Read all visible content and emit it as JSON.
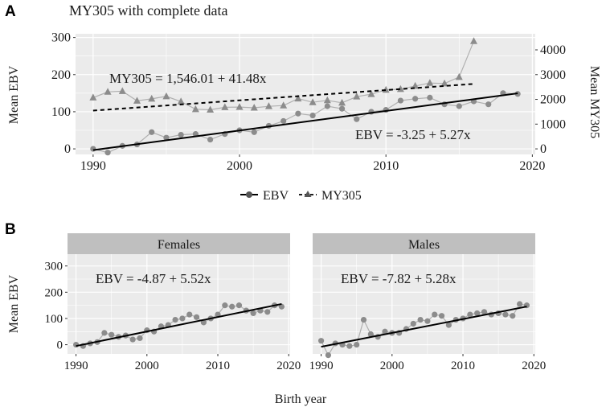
{
  "panel_a_label": "A",
  "panel_b_label": "B",
  "shared_xlabel": "Birth year",
  "legend": {
    "ebv_label": "EBV",
    "my305_label": "MY305"
  },
  "colors": {
    "panel_bg": "#ebebeb",
    "grid": "#dcdcdc",
    "series_points": "#8c8c8c",
    "series_line": "#b0b0b0",
    "regression": "#000000",
    "strip_bg": "#bfbfbf"
  },
  "chart_data": [
    {
      "id": "A",
      "type": "line",
      "title": "MY305 with complete data",
      "xlabel": "",
      "ylabel": "Mean EBV",
      "y2label": "Mean MY305",
      "xlim": [
        1988.8,
        2020.2
      ],
      "ylim": [
        -15,
        310
      ],
      "y2lim": [
        -225,
        4650
      ],
      "xticks": [
        1990,
        2000,
        2010,
        2020
      ],
      "yticks": [
        0,
        100,
        200,
        300
      ],
      "y2ticks": [
        0,
        1000,
        2000,
        3000,
        4000
      ],
      "series": [
        {
          "name": "EBV",
          "axis": "left",
          "marker": "circle",
          "x": [
            1990,
            1991,
            1992,
            1993,
            1994,
            1995,
            1996,
            1997,
            1998,
            1999,
            2000,
            2001,
            2002,
            2003,
            2004,
            2005,
            2006,
            2007,
            2008,
            2009,
            2010,
            2011,
            2012,
            2013,
            2014,
            2015,
            2016,
            2017,
            2018,
            2019
          ],
          "values": [
            0,
            -10,
            8,
            12,
            45,
            30,
            38,
            40,
            25,
            40,
            50,
            45,
            62,
            75,
            95,
            90,
            115,
            108,
            80,
            100,
            105,
            130,
            135,
            138,
            120,
            115,
            128,
            120,
            150,
            148
          ]
        },
        {
          "name": "MY305",
          "axis": "right",
          "marker": "triangle",
          "x": [
            1990,
            1991,
            1992,
            1993,
            1994,
            1995,
            1996,
            1997,
            1998,
            1999,
            2000,
            2001,
            2002,
            2003,
            2004,
            2005,
            2006,
            2007,
            2008,
            2009,
            2010,
            2011,
            2012,
            2013,
            2014,
            2015,
            2016
          ],
          "values": [
            2070,
            2300,
            2330,
            1940,
            2020,
            2120,
            1910,
            1600,
            1580,
            1680,
            1690,
            1660,
            1720,
            1750,
            2030,
            1880,
            1960,
            1860,
            2110,
            2210,
            2380,
            2410,
            2540,
            2660,
            2640,
            2900,
            4350
          ]
        }
      ],
      "regressions": [
        {
          "series": "EBV",
          "equation": "EBV = -3.25 + 5.27x",
          "intercept": -3.25,
          "slope": 5.27,
          "x0": 1990,
          "x_range": [
            1990,
            2019
          ],
          "axis": "left",
          "style": "solid"
        },
        {
          "series": "MY305",
          "equation": "MY305 = 1,546.01 + 41.48x",
          "intercept": 1546.01,
          "slope": 41.48,
          "x0": 1990,
          "x_range": [
            1990,
            2016
          ],
          "axis": "right",
          "style": "dashed"
        }
      ],
      "legend_position": "bottom"
    },
    {
      "id": "B-females",
      "type": "line",
      "strip_label": "Females",
      "ylabel": "Mean EBV",
      "xlim": [
        1988.8,
        2020.2
      ],
      "ylim": [
        -35,
        345
      ],
      "xticks": [
        1990,
        2000,
        2010,
        2020
      ],
      "yticks": [
        0,
        100,
        200,
        300
      ],
      "series": [
        {
          "name": "EBV",
          "marker": "circle",
          "x": [
            1990,
            1991,
            1992,
            1993,
            1994,
            1995,
            1996,
            1997,
            1998,
            1999,
            2000,
            2001,
            2002,
            2003,
            2004,
            2005,
            2006,
            2007,
            2008,
            2009,
            2010,
            2011,
            2012,
            2013,
            2014,
            2015,
            2016,
            2017,
            2018,
            2019
          ],
          "values": [
            0,
            -5,
            5,
            10,
            45,
            38,
            30,
            35,
            20,
            25,
            55,
            50,
            70,
            75,
            95,
            100,
            115,
            105,
            85,
            100,
            115,
            150,
            145,
            150,
            130,
            120,
            130,
            125,
            150,
            145
          ]
        }
      ],
      "regressions": [
        {
          "equation": "EBV = -4.87 + 5.52x",
          "intercept": -4.87,
          "slope": 5.52,
          "x0": 1990,
          "x_range": [
            1990,
            2019
          ],
          "style": "solid"
        }
      ]
    },
    {
      "id": "B-males",
      "type": "line",
      "strip_label": "Males",
      "xlim": [
        1988.8,
        2020.2
      ],
      "ylim": [
        -35,
        345
      ],
      "xticks": [
        1990,
        2000,
        2010,
        2020
      ],
      "yticks": [
        0,
        100,
        200,
        300
      ],
      "series": [
        {
          "name": "EBV",
          "marker": "circle",
          "x": [
            1990,
            1991,
            1992,
            1993,
            1994,
            1995,
            1996,
            1997,
            1998,
            1999,
            2000,
            2001,
            2002,
            2003,
            2004,
            2005,
            2006,
            2007,
            2008,
            2009,
            2010,
            2011,
            2012,
            2013,
            2014,
            2015,
            2016,
            2017,
            2018,
            2019
          ],
          "values": [
            15,
            -40,
            5,
            0,
            -5,
            0,
            95,
            40,
            30,
            50,
            45,
            45,
            60,
            80,
            95,
            90,
            115,
            110,
            75,
            95,
            100,
            115,
            120,
            125,
            115,
            120,
            115,
            110,
            155,
            150
          ]
        }
      ],
      "regressions": [
        {
          "equation": "EBV = -7.82 + 5.28x",
          "intercept": -7.82,
          "slope": 5.28,
          "x0": 1990,
          "x_range": [
            1990,
            2019
          ],
          "style": "solid"
        }
      ]
    }
  ]
}
